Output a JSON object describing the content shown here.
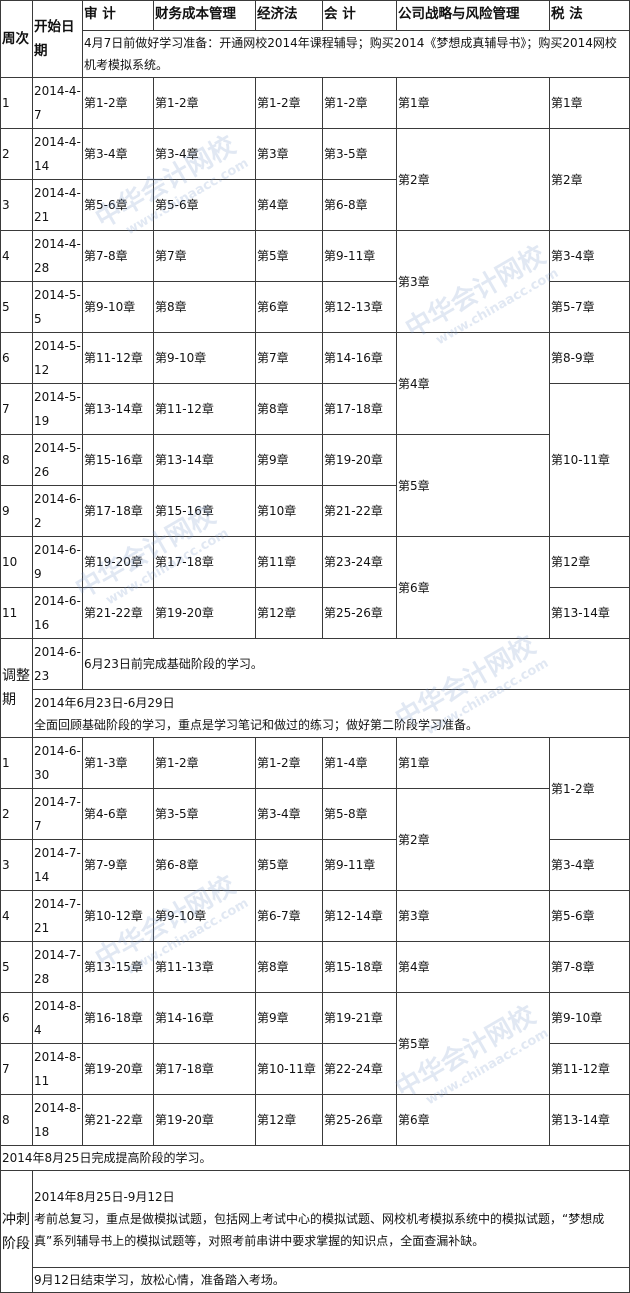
{
  "header": {
    "week": "周次",
    "start_date": "开始日期",
    "subjects": [
      "审 计",
      "财务成本管理",
      "经济法",
      "会 计",
      "公司战略与风险管理",
      "税 法"
    ]
  },
  "prep_note": "4月7日前做好学习准备：开通网校2014年课程辅导；购买2014《梦想成真辅导书》；购买2014网校机考模拟系统。",
  "phase1": [
    {
      "week": "1",
      "date": "2014-4-7",
      "cells": [
        {
          "t": "第1-2章"
        },
        {
          "t": "第1-2章"
        },
        {
          "t": "第1-2章"
        },
        {
          "t": "第1-2章"
        },
        {
          "t": "第1章"
        },
        {
          "t": "第1章"
        }
      ]
    },
    {
      "week": "2",
      "date": "2014-4-14",
      "cells": [
        {
          "t": "第3-4章"
        },
        {
          "t": "第3-4章"
        },
        {
          "t": "第3章"
        },
        {
          "t": "第3-5章"
        },
        {
          "t": "第2章",
          "rows": 2
        },
        {
          "t": "第2章",
          "rows": 2
        }
      ]
    },
    {
      "week": "3",
      "date": "2014-4-21",
      "cells": [
        {
          "t": "第5-6章"
        },
        {
          "t": "第5-6章"
        },
        {
          "t": "第4章"
        },
        {
          "t": "第6-8章"
        }
      ]
    },
    {
      "week": "4",
      "date": "2014-4-28",
      "cells": [
        {
          "t": "第7-8章"
        },
        {
          "t": "第7章"
        },
        {
          "t": "第5章"
        },
        {
          "t": "第9-11章"
        },
        {
          "t": "第3章",
          "rows": 2
        },
        {
          "t": "第3-4章"
        }
      ]
    },
    {
      "week": "5",
      "date": "2014-5-5",
      "cells": [
        {
          "t": "第9-10章"
        },
        {
          "t": "第8章"
        },
        {
          "t": "第6章"
        },
        {
          "t": "第12-13章"
        },
        {
          "t": "第5-7章"
        }
      ]
    },
    {
      "week": "6",
      "date": "2014-5-12",
      "cells": [
        {
          "t": "第11-12章"
        },
        {
          "t": "第9-10章"
        },
        {
          "t": "第7章"
        },
        {
          "t": "第14-16章"
        },
        {
          "t": "第4章",
          "rows": 2
        },
        {
          "t": "第8-9章"
        }
      ]
    },
    {
      "week": "7",
      "date": "2014-5-19",
      "cells": [
        {
          "t": "第13-14章"
        },
        {
          "t": "第11-12章"
        },
        {
          "t": "第8章"
        },
        {
          "t": "第17-18章"
        },
        {
          "t": "第10-11章",
          "rows": 3
        }
      ]
    },
    {
      "week": "8",
      "date": "2014-5-26",
      "cells": [
        {
          "t": "第15-16章"
        },
        {
          "t": "第13-14章"
        },
        {
          "t": "第9章"
        },
        {
          "t": "第19-20章"
        },
        {
          "t": "第5章",
          "rows": 2
        }
      ]
    },
    {
      "week": "9",
      "date": "2014-6-2",
      "cells": [
        {
          "t": "第17-18章"
        },
        {
          "t": "第15-16章"
        },
        {
          "t": "第10章"
        },
        {
          "t": "第21-22章"
        }
      ]
    },
    {
      "week": "10",
      "date": "2014-6-9",
      "cells": [
        {
          "t": "第19-20章"
        },
        {
          "t": "第17-18章"
        },
        {
          "t": "第11章"
        },
        {
          "t": "第23-24章"
        },
        {
          "t": "第6章",
          "rows": 2
        },
        {
          "t": "第12章"
        }
      ]
    },
    {
      "week": "11",
      "date": "2014-6-16",
      "cells": [
        {
          "t": "第21-22章"
        },
        {
          "t": "第19-20章"
        },
        {
          "t": "第12章"
        },
        {
          "t": "第25-26章"
        },
        {
          "t": "第13-14章"
        }
      ]
    }
  ],
  "adjust": {
    "label": "调整期",
    "date": "2014-6-23",
    "note": "6月23日前完成基础阶段的学习。",
    "range": "2014年6月23日-6月29日",
    "desc": "全面回顾基础阶段的学习，重点是学习笔记和做过的练习；做好第二阶段学习准备。"
  },
  "phase2": [
    {
      "week": "1",
      "date": "2014-6-30",
      "cells": [
        {
          "t": "第1-3章"
        },
        {
          "t": "第1-2章"
        },
        {
          "t": "第1-2章"
        },
        {
          "t": "第1-4章"
        },
        {
          "t": "第1章"
        },
        {
          "t": "第1-2章",
          "rows": 2
        }
      ]
    },
    {
      "week": "2",
      "date": "2014-7-7",
      "cells": [
        {
          "t": "第4-6章"
        },
        {
          "t": "第3-5章"
        },
        {
          "t": "第3-4章"
        },
        {
          "t": "第5-8章"
        },
        {
          "t": "第2章",
          "rows": 2
        }
      ]
    },
    {
      "week": "3",
      "date": "2014-7-14",
      "cells": [
        {
          "t": "第7-9章"
        },
        {
          "t": "第6-8章"
        },
        {
          "t": "第5章"
        },
        {
          "t": "第9-11章"
        },
        {
          "t": "第3-4章"
        }
      ]
    },
    {
      "week": "4",
      "date": "2014-7-21",
      "cells": [
        {
          "t": "第10-12章"
        },
        {
          "t": "第9-10章"
        },
        {
          "t": "第6-7章"
        },
        {
          "t": "第12-14章"
        },
        {
          "t": "第3章"
        },
        {
          "t": "第5-6章"
        }
      ]
    },
    {
      "week": "5",
      "date": "2014-7-28",
      "cells": [
        {
          "t": "第13-15章"
        },
        {
          "t": "第11-13章"
        },
        {
          "t": "第8章"
        },
        {
          "t": "第15-18章"
        },
        {
          "t": "第4章"
        },
        {
          "t": "第7-8章"
        }
      ]
    },
    {
      "week": "6",
      "date": "2014-8-4",
      "cells": [
        {
          "t": "第16-18章"
        },
        {
          "t": "第14-16章"
        },
        {
          "t": "第9章"
        },
        {
          "t": "第19-21章"
        },
        {
          "t": "第5章",
          "rows": 2
        },
        {
          "t": "第9-10章"
        }
      ]
    },
    {
      "week": "7",
      "date": "2014-8-11",
      "cells": [
        {
          "t": "第19-20章"
        },
        {
          "t": "第17-18章"
        },
        {
          "t": "第10-11章"
        },
        {
          "t": "第22-24章"
        },
        {
          "t": "第11-12章"
        }
      ]
    },
    {
      "week": "8",
      "date": "2014-8-18",
      "cells": [
        {
          "t": "第21-22章"
        },
        {
          "t": "第19-20章"
        },
        {
          "t": "第12章"
        },
        {
          "t": "第25-26章"
        },
        {
          "t": "第6章"
        },
        {
          "t": "第13-14章"
        }
      ]
    }
  ],
  "phase2_end_note": "2014年8月25日完成提高阶段的学习。",
  "sprint": {
    "label": "冲刺阶段",
    "range": "2014年8月25日-9月12日",
    "desc": "考前总复习，重点是做模拟试题，包括网上考试中心的模拟试题、网校机考模拟系统中的模拟试题，“梦想成真”系列辅导书上的模拟试题等，对照考前串讲中要求掌握的知识点，全面查漏补缺。",
    "end": "9月12日结束学习，放松心情，准备踏入考场。"
  },
  "watermark": {
    "name": "中华会计网校",
    "url": "www.chinaacc.com"
  }
}
